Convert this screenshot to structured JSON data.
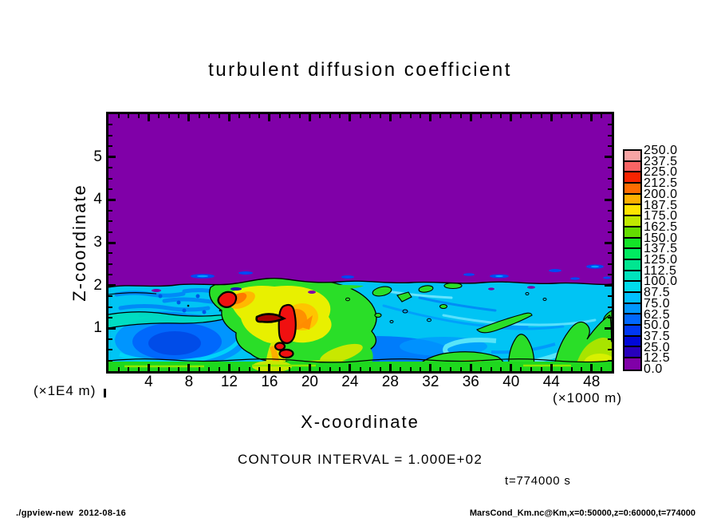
{
  "title": "turbulent diffusion coefficient",
  "axes": {
    "x_label": "X-coordinate",
    "z_label": "Z-coordinate",
    "x_unit": "(×1000 m)",
    "z_unit": "(×1E4 m)",
    "x_tick_labels": [
      "4",
      "8",
      "12",
      "16",
      "20",
      "24",
      "28",
      "32",
      "36",
      "40",
      "44",
      "48"
    ],
    "z_tick_labels": [
      "1",
      "2",
      "3",
      "4",
      "5"
    ]
  },
  "annotations": {
    "contour_interval": "CONTOUR INTERVAL = 1.000E+02",
    "time_label": "t=774000 s"
  },
  "footer": {
    "left": "./gpview-new  2012-08-16",
    "right": "MarsCond_Km.nc@Km,x=0:50000,z=0:60000,t=774000"
  },
  "chart_data": {
    "type": "heatmap",
    "title": "turbulent diffusion coefficient",
    "xlabel": "X-coordinate",
    "ylabel": "Z-coordinate",
    "x_unit_factor": "×1000 m",
    "z_unit_factor": "×1E4 m",
    "xlim": [
      0,
      50
    ],
    "zlim": [
      0,
      6
    ],
    "x_major_ticks": [
      4,
      8,
      12,
      16,
      20,
      24,
      28,
      32,
      36,
      40,
      44,
      48
    ],
    "x_minor_step": 1,
    "z_major_ticks": [
      1,
      2,
      3,
      4,
      5
    ],
    "z_minor_step": 0.25,
    "contour_interval": 100,
    "contour_levels_drawn": [
      100,
      200
    ],
    "time": "t=774000 s",
    "colorbar": {
      "min": 0,
      "max": 250,
      "step": 12.5,
      "levels": [
        "0.0",
        "12.5",
        "25.0",
        "37.5",
        "50.0",
        "62.5",
        "75.0",
        "87.5",
        "100.0",
        "112.5",
        "125.0",
        "137.5",
        "150.0",
        "162.5",
        "175.0",
        "187.5",
        "200.0",
        "212.5",
        "225.0",
        "237.5",
        "250.0"
      ],
      "colors_bottom_to_top": [
        "#8000A8",
        "#2800BC",
        "#0008D8",
        "#0038F4",
        "#0068FF",
        "#0098FF",
        "#00C0FF",
        "#00DCEC",
        "#00E2BC",
        "#00E690",
        "#00EA60",
        "#14E428",
        "#64DC00",
        "#C0E800",
        "#FFE400",
        "#FFB000",
        "#FF6C00",
        "#F82400",
        "#F86464",
        "#F8A4A4"
      ]
    },
    "field_summary": [
      "z > ~2 (×1E4 m): uniform minimum 0–12.5 (purple) with a few thin detached blue streaks of ~25–75 just above the interface",
      "sharp wavy interface near z ≈ 2 marked by the 100-level black contour",
      "0 < z < ~2: turbulent layer, mostly 50–100 (blue/cyan) with eddies and green patches of 100–150",
      "strong plume near x ≈ 16–19 (×1000 m) with cores above 200 (red, outlined by the 200-level contour) surrounded by 150–200 (yellow/orange)",
      "near-surface green band of ~125–150 along z ≈ 0 across the full width, brighter (~150–175) near x ≈ 19, 33 and 46",
      "weaker green plumes rising from the surface near x ≈ 33, 41 and 44–50"
    ]
  },
  "colors": {
    "background": "#FFFFFF",
    "frame": "#000000",
    "field_min_purple": "#8000A8",
    "field_base_cyan": "#00C4F4"
  }
}
